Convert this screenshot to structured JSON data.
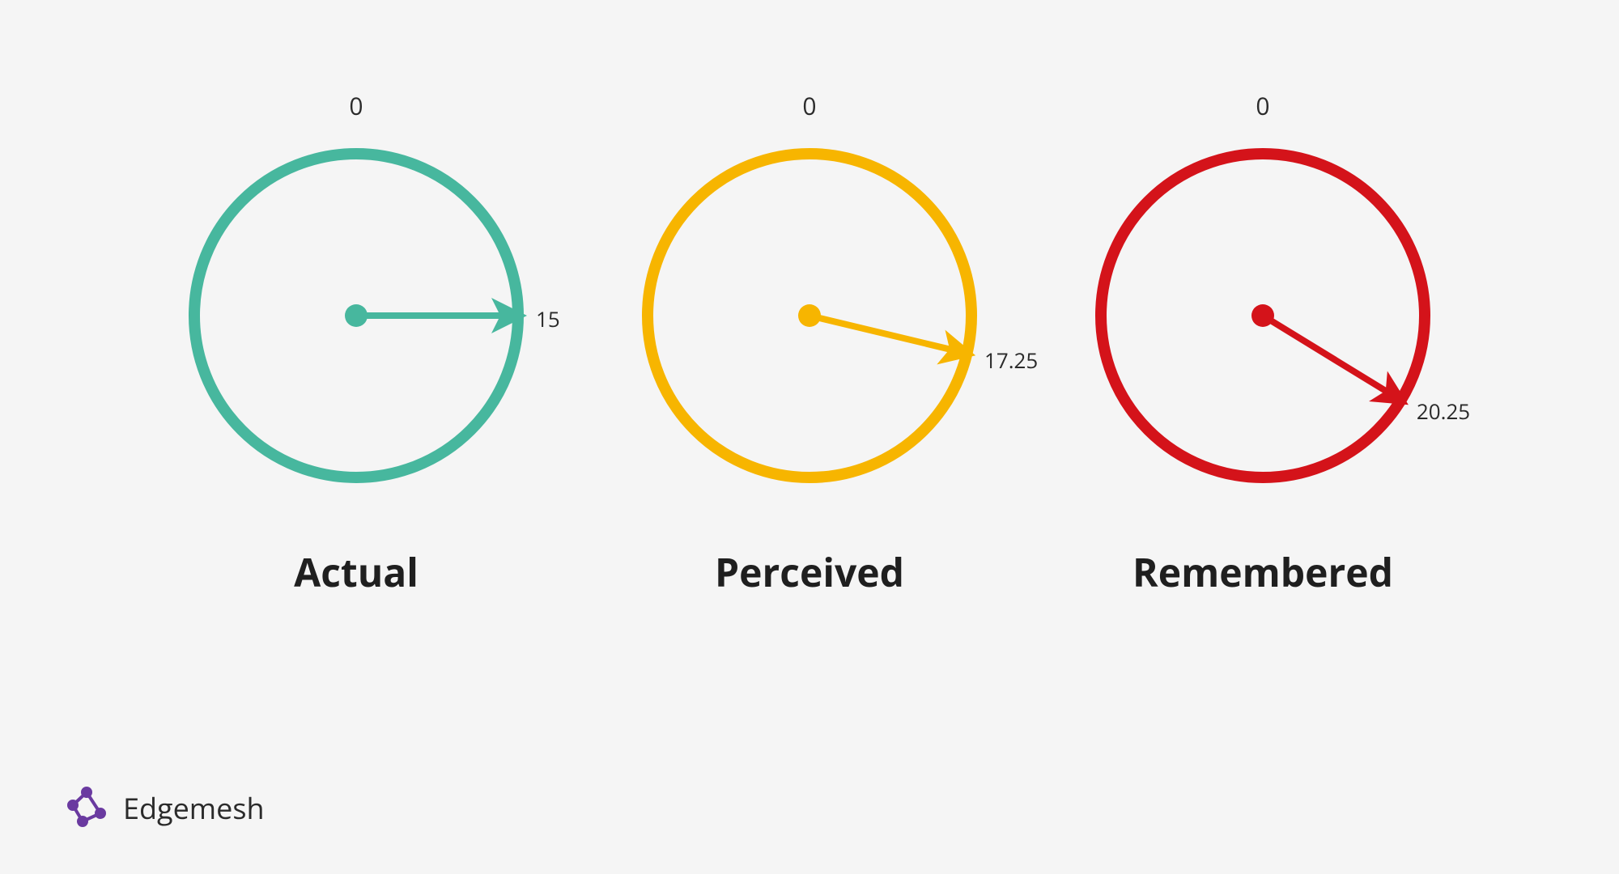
{
  "background_color": "#f5f5f5",
  "text_color": "#2b2b2b",
  "label_fontsize": 30,
  "value_fontsize": 26,
  "caption_fontsize": 48,
  "caption_weight": 700,
  "clock_scale_max": 60,
  "circle_radius": 200,
  "ring_stroke_width": 14,
  "hub_radius": 14,
  "arrow_stroke_width": 8,
  "gauges": [
    {
      "id": "actual",
      "caption": "Actual",
      "origin_label": "0",
      "value": 15,
      "value_label": "15",
      "color": "#47b79e"
    },
    {
      "id": "perceived",
      "caption": "Perceived",
      "origin_label": "0",
      "value": 17.25,
      "value_label": "17.25",
      "color": "#f7b500"
    },
    {
      "id": "remembered",
      "caption": "Remembered",
      "origin_label": "0",
      "value": 20.25,
      "value_label": "20.25",
      "color": "#d4131a"
    }
  ],
  "footer": {
    "brand": "Edgemesh",
    "logo_color": "#6a3aa0",
    "logo_fontsize": 36
  }
}
